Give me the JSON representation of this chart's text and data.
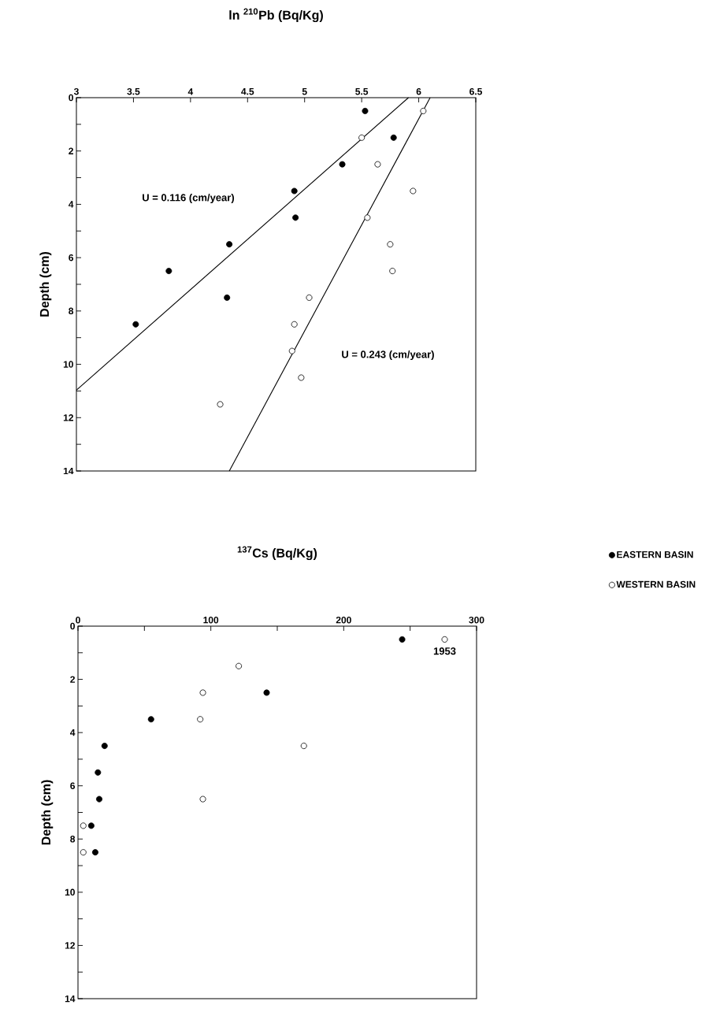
{
  "chart_data": [
    {
      "type": "scatter",
      "xlabel": "ln $^{210}$Pb (Bq/Kg)",
      "ylabel": "Depth (cm)",
      "xlim": [
        3,
        6.5
      ],
      "ylim": [
        14,
        0
      ],
      "xticks": [
        3,
        3.5,
        4,
        4.5,
        5,
        5.5,
        6,
        6.5
      ],
      "yticks": [
        0,
        {
          "value": 1,
          "label": null
        },
        2,
        {
          "value": 3,
          "label": null
        },
        4,
        {
          "value": 5,
          "label": null
        },
        6,
        {
          "value": 7,
          "label": null
        },
        8,
        {
          "value": 9,
          "label": null
        },
        10,
        {
          "value": 11,
          "label": null
        },
        12,
        {
          "value": 13,
          "label": null
        },
        14
      ],
      "series": [
        {
          "color": "#000000",
          "marker": "circle",
          "x": [
            5.53,
            5.78,
            5.33,
            4.91,
            4.92,
            4.34,
            3.81,
            4.32,
            3.52
          ],
          "values": [
            0.5,
            1.5,
            2.5,
            3.5,
            4.5,
            5.5,
            6.5,
            7.5,
            8.5
          ]
        },
        {
          "color": "#ffffff",
          "marker": "circle",
          "x": [
            6.04,
            5.5,
            5.64,
            5.95,
            5.55,
            5.75,
            5.77,
            5.04,
            4.91,
            4.89,
            4.97,
            4.26
          ],
          "values": [
            0.5,
            1.5,
            2.5,
            3.5,
            4.5,
            5.5,
            6.5,
            7.5,
            8.5,
            9.5,
            10.5,
            11.5
          ]
        },
        {
          "type": "line",
          "marker": "none",
          "color": "#000000",
          "x": [
            5.91,
            3
          ],
          "values": [
            0,
            10.97
          ]
        },
        {
          "type": "line",
          "marker": "none",
          "color": "#000000",
          "x": [
            6.1,
            4.34
          ],
          "values": [
            0,
            14
          ]
        }
      ],
      "annotations": [
        "U = 0.116 (cm/year)",
        "U = 0.243 (cm/year)"
      ]
    },
    {
      "type": "scatter",
      "xlabel": "$^{137}$Cs (Bq/Kg)",
      "ylabel": "Depth (cm)",
      "xlim": [
        0,
        300
      ],
      "ylim": [
        14,
        0
      ],
      "legend": "right",
      "xticks": [
        0,
        {
          "value": 50,
          "label": null
        },
        100,
        {
          "value": 150,
          "label": null
        },
        200,
        {
          "value": 250,
          "label": null
        },
        300
      ],
      "yticks": [
        0,
        {
          "value": 1,
          "label": null
        },
        2,
        {
          "value": 3,
          "label": null
        },
        4,
        {
          "value": 5,
          "label": null
        },
        6,
        {
          "value": 7,
          "label": null
        },
        8,
        {
          "value": 9,
          "label": null
        },
        10,
        {
          "value": 11,
          "label": null
        },
        12,
        {
          "value": 13,
          "label": null
        },
        14
      ],
      "series": [
        {
          "name": "EASTERN BASIN",
          "color": "#000000",
          "marker": "circle",
          "x": [
            244,
            142,
            55,
            20,
            15,
            16,
            10,
            13
          ],
          "values": [
            0.5,
            2.5,
            3.5,
            4.5,
            5.5,
            6.5,
            7.5,
            8.5
          ]
        },
        {
          "name": "WESTERN BASIN",
          "color": "#ffffff",
          "marker": "circle",
          "x": [
            276,
            121,
            94,
            92,
            170,
            94,
            4,
            4
          ],
          "values": [
            0.5,
            1.5,
            2.5,
            3.5,
            4.5,
            6.5,
            7.5,
            8.5
          ]
        }
      ],
      "annotations": [
        {
          "text": "1953",
          "x": 276,
          "y": 0.5
        }
      ]
    }
  ]
}
